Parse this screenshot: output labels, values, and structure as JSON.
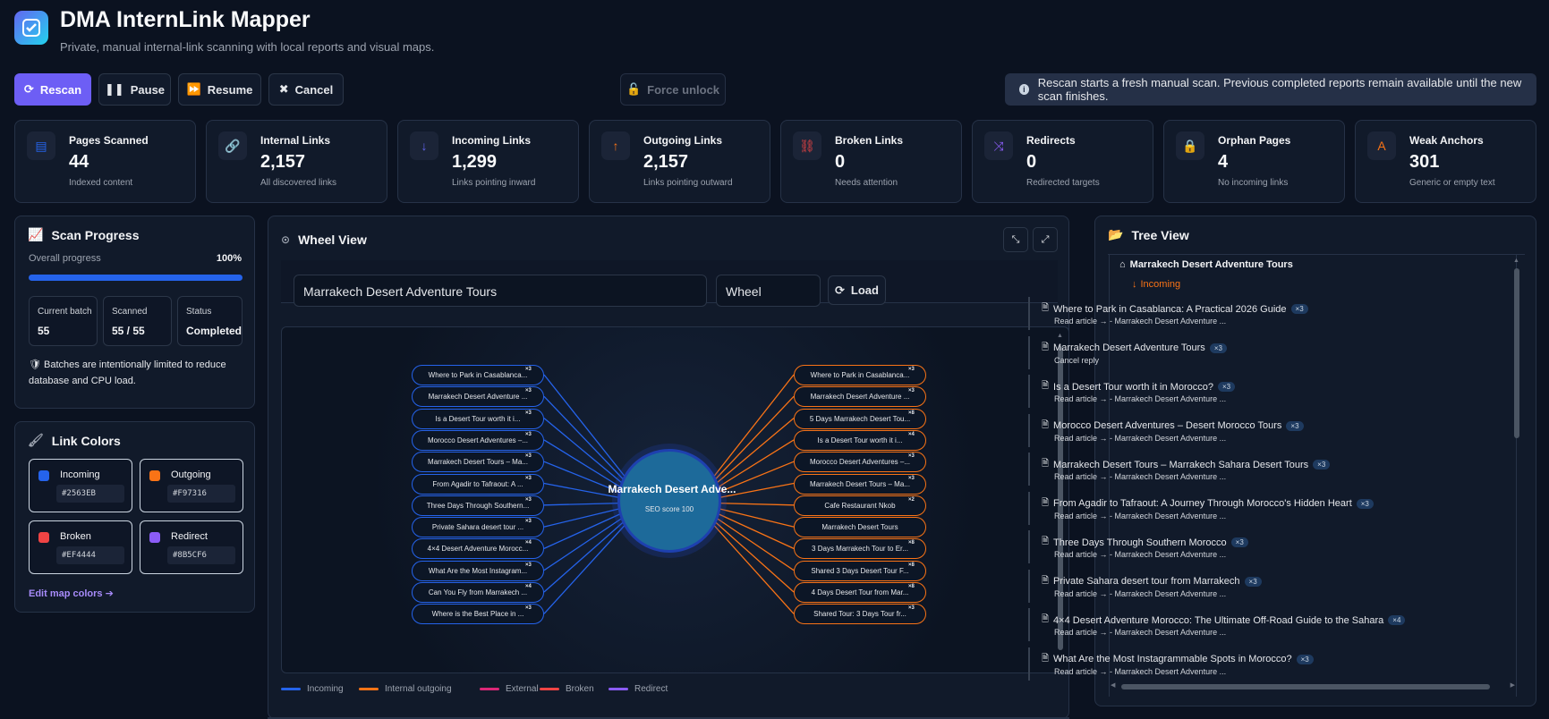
{
  "header": {
    "title": "DMA InternLink Mapper",
    "subtitle": "Private, manual internal-link scanning with local reports and visual maps."
  },
  "toolbar": {
    "rescan": "Rescan",
    "pause": "Pause",
    "resume": "Resume",
    "cancel": "Cancel",
    "force_unlock": "Force unlock",
    "notice": "Rescan starts a fresh manual scan. Previous completed reports remain available until the new scan finishes."
  },
  "stats": [
    {
      "label": "Pages Scanned",
      "value": "44",
      "sub": "Indexed content",
      "icon": "document-icon",
      "color": "#2563eb"
    },
    {
      "label": "Internal Links",
      "value": "2,157",
      "sub": "All discovered links",
      "icon": "link-icon",
      "color": "#22c55e"
    },
    {
      "label": "Incoming Links",
      "value": "1,299",
      "sub": "Links pointing inward",
      "icon": "arrow-down-icon",
      "color": "#6366f1"
    },
    {
      "label": "Outgoing Links",
      "value": "2,157",
      "sub": "Links pointing outward",
      "icon": "arrow-up-icon",
      "color": "#f97316"
    },
    {
      "label": "Broken Links",
      "value": "0",
      "sub": "Needs attention",
      "icon": "broken-link-icon",
      "color": "#ef4444"
    },
    {
      "label": "Redirects",
      "value": "0",
      "sub": "Redirected targets",
      "icon": "shuffle-icon",
      "color": "#8b5cf6"
    },
    {
      "label": "Orphan Pages",
      "value": "4",
      "sub": "No incoming links",
      "icon": "lock-icon",
      "color": "#ef4444"
    },
    {
      "label": "Weak Anchors",
      "value": "301",
      "sub": "Generic or empty text",
      "icon": "font-icon",
      "color": "#f97316"
    }
  ],
  "progress": {
    "title": "Scan Progress",
    "overall_label": "Overall progress",
    "percent_text": "100%",
    "percent": 100,
    "batch_label": "Current batch",
    "batch_value": "55",
    "scanned_label": "Scanned",
    "scanned_value": "55 / 55",
    "status_label": "Status",
    "status_value": "Completed",
    "note": "Batches are intentionally limited to reduce database and CPU load."
  },
  "colors": {
    "title": "Link Colors",
    "items": [
      {
        "name": "Incoming",
        "hex": "#2563EB"
      },
      {
        "name": "Outgoing",
        "hex": "#F97316"
      },
      {
        "name": "Broken",
        "hex": "#EF4444"
      },
      {
        "name": "Redirect",
        "hex": "#8B5CF6"
      }
    ],
    "edit_link": "Edit map colors"
  },
  "wheel": {
    "title": "Wheel View",
    "page_value": "Marrakech Desert Adventure Tours",
    "mode_value": "Wheel",
    "load": "Load",
    "center_title": "Marrakech Desert Adve...",
    "center_score": "SEO score 100",
    "incoming": [
      {
        "label": "Where to Park in Casablanca...",
        "count": "×3"
      },
      {
        "label": "Marrakech Desert Adventure ...",
        "count": "×3"
      },
      {
        "label": "Is a Desert Tour worth it i...",
        "count": "×3"
      },
      {
        "label": "Morocco Desert Adventures –...",
        "count": "×3"
      },
      {
        "label": "Marrakech Desert Tours – Ma...",
        "count": "×3"
      },
      {
        "label": "From Agadir to Tafraout: A ...",
        "count": "×3"
      },
      {
        "label": "Three Days Through Southern...",
        "count": "×3"
      },
      {
        "label": "Private Sahara desert tour ...",
        "count": "×3"
      },
      {
        "label": "4×4 Desert Adventure Morocc...",
        "count": "×4"
      },
      {
        "label": "What Are the Most Instagram...",
        "count": "×3"
      },
      {
        "label": "Can You Fly from Marrakech ...",
        "count": "×4"
      },
      {
        "label": "Where is the Best Place in ...",
        "count": "×3"
      }
    ],
    "outgoing": [
      {
        "label": "Where to Park in Casablanca...",
        "count": "×3"
      },
      {
        "label": "Marrakech Desert Adventure ...",
        "count": "×3"
      },
      {
        "label": "5 Days Marrakech Desert Tou...",
        "count": "×8"
      },
      {
        "label": "Is a Desert Tour worth it i...",
        "count": "×4"
      },
      {
        "label": "Morocco Desert Adventures –...",
        "count": "×3"
      },
      {
        "label": "Marrakech Desert Tours – Ma...",
        "count": "×3"
      },
      {
        "label": "Cafe Restaurant Nkob",
        "count": "×2"
      },
      {
        "label": "Marrakech Desert Tours",
        "count": ""
      },
      {
        "label": "3 Days Marrakech Tour to Er...",
        "count": "×8"
      },
      {
        "label": "Shared 3 Days Desert Tour F...",
        "count": "×8"
      },
      {
        "label": "4 Days Desert Tour from Mar...",
        "count": "×8"
      },
      {
        "label": "Shared Tour: 3 Days Tour fr...",
        "count": "×3"
      }
    ],
    "legend": [
      {
        "label": "Incoming",
        "color": "#2563eb"
      },
      {
        "label": "Internal outgoing",
        "color": "#f97316"
      },
      {
        "label": "External",
        "color": "#db2777"
      },
      {
        "label": "Broken",
        "color": "#ef4444"
      },
      {
        "label": "Redirect",
        "color": "#8b5cf6"
      }
    ]
  },
  "tree": {
    "title": "Tree View",
    "root": "Marrakech Desert Adventure Tours",
    "incoming_label": "Incoming",
    "items": [
      {
        "title": "Where to Park in Casablanca: A Practical 2026 Guide",
        "count": "×3",
        "sub": "Read article → - Marrakech Desert Adventure ..."
      },
      {
        "title": "Marrakech Desert Adventure Tours",
        "count": "×3",
        "sub": "Cancel reply"
      },
      {
        "title": "Is a Desert Tour worth it in Morocco?",
        "count": "×3",
        "sub": "Read article → - Marrakech Desert Adventure ..."
      },
      {
        "title": "Morocco Desert Adventures – Desert Morocco Tours",
        "count": "×3",
        "sub": "Read article → - Marrakech Desert Adventure ..."
      },
      {
        "title": "Marrakech Desert Tours – Marrakech Sahara Desert Tours",
        "count": "×3",
        "sub": "Read article → - Marrakech Desert Adventure ..."
      },
      {
        "title": "From Agadir to Tafraout: A Journey Through Morocco's Hidden Heart",
        "count": "×3",
        "sub": "Read article → - Marrakech Desert Adventure ..."
      },
      {
        "title": "Three Days Through Southern Morocco",
        "count": "×3",
        "sub": "Read article → - Marrakech Desert Adventure ..."
      },
      {
        "title": "Private Sahara desert tour from Marrakech",
        "count": "×3",
        "sub": "Read article → - Marrakech Desert Adventure ..."
      },
      {
        "title": "4×4 Desert Adventure Morocco: The Ultimate Off-Road Guide to the Sahara",
        "count": "×4",
        "sub": "Read article → - Marrakech Desert Adventure ..."
      },
      {
        "title": "What Are the Most Instagrammable Spots in Morocco?",
        "count": "×3",
        "sub": "Read article → - Marrakech Desert Adventure ..."
      }
    ]
  }
}
